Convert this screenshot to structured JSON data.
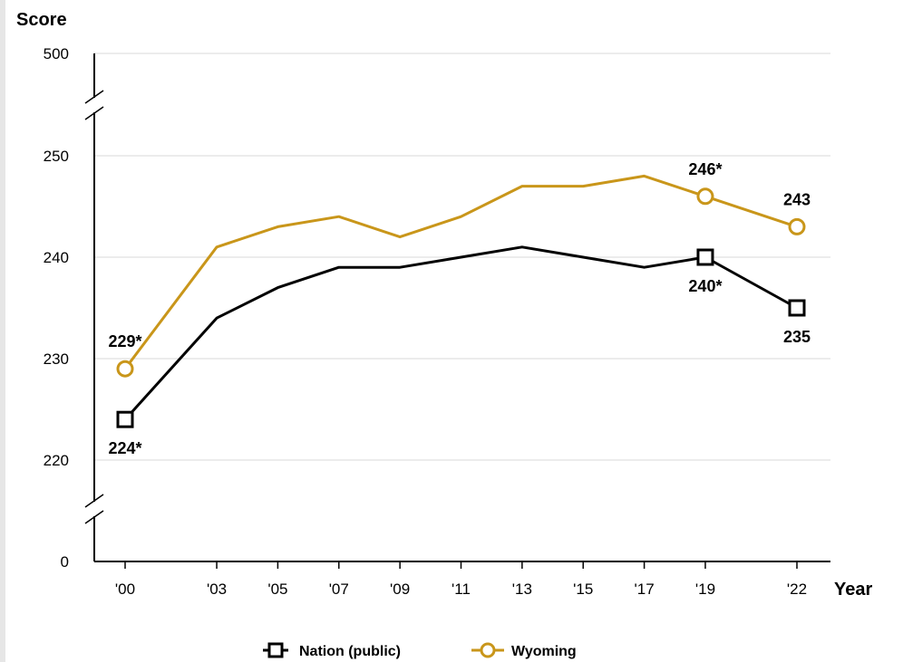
{
  "chart_data": {
    "type": "line",
    "ylabel": "Score",
    "xlabel": "Year",
    "x": [
      "'00",
      "'03",
      "'05",
      "'07",
      "'09",
      "'11",
      "'13",
      "'15",
      "'17",
      "'19",
      "'22"
    ],
    "x_years": [
      2000,
      2003,
      2005,
      2007,
      2009,
      2011,
      2013,
      2015,
      2017,
      2019,
      2022
    ],
    "y_ticks": [
      "0",
      "220",
      "230",
      "240",
      "250",
      "500"
    ],
    "ylim": [
      0,
      500
    ],
    "y_axis_break": "broken between 0 and 220 and between 250 and 500",
    "grid": true,
    "legend_position": "bottom-center",
    "series": [
      {
        "name": "Nation (public)",
        "color": "#000000",
        "marker": "square",
        "values": [
          224,
          234,
          237,
          239,
          239,
          240,
          241,
          240,
          239,
          240,
          235
        ],
        "labels": [
          {
            "index": 0,
            "text": "224*",
            "position": "below"
          },
          {
            "index": 9,
            "text": "240*",
            "position": "below"
          },
          {
            "index": 10,
            "text": "235",
            "position": "below"
          }
        ]
      },
      {
        "name": "Wyoming",
        "color": "#c9961a",
        "marker": "circle",
        "values": [
          229,
          241,
          243,
          244,
          242,
          244,
          247,
          247,
          248,
          246,
          243
        ],
        "labels": [
          {
            "index": 0,
            "text": "229*",
            "position": "above"
          },
          {
            "index": 9,
            "text": "246*",
            "position": "above"
          },
          {
            "index": 10,
            "text": "243",
            "position": "above"
          }
        ]
      }
    ]
  }
}
